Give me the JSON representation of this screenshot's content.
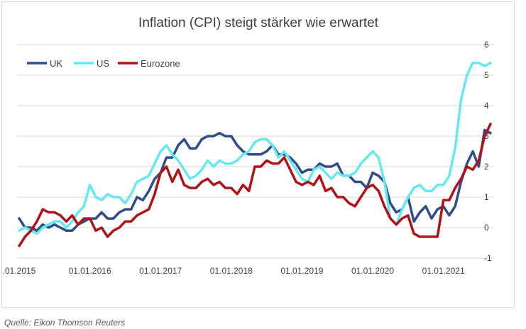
{
  "source": "Quelle: Eikon Thomson Reuters",
  "chart_data": {
    "type": "line",
    "title": "Inflation (CPI) steigt stärker wie erwartet",
    "xlabel": "",
    "ylabel": "",
    "ylim": [
      -1,
      6
    ],
    "yticks": [
      -1,
      0,
      1,
      2,
      3,
      4,
      5,
      6
    ],
    "x_tick_labels": [
      ".01.2015",
      "01.01.2016",
      "01.01.2017",
      "01.01.2018",
      "01.01.2019",
      "01.01.2020",
      "01.01.2021"
    ],
    "x_start": "2015-01",
    "x_end": "2021-07",
    "grid": true,
    "legend_position": "top-left",
    "colors": {
      "UK": "#2e4d8a",
      "US": "#66e8f2",
      "Eurozone": "#b01218",
      "grid": "#d9d9d9",
      "axis_text": "#404040",
      "title": "#404040"
    },
    "series": [
      {
        "name": "UK",
        "color": "#2e4d8a",
        "values": [
          0.3,
          0.0,
          0.0,
          -0.1,
          0.1,
          0.0,
          0.1,
          0.0,
          -0.1,
          -0.1,
          0.1,
          0.2,
          0.3,
          0.3,
          0.5,
          0.3,
          0.3,
          0.5,
          0.6,
          0.6,
          1.0,
          0.9,
          1.2,
          1.6,
          1.8,
          2.3,
          2.3,
          2.7,
          2.9,
          2.6,
          2.6,
          2.9,
          3.0,
          3.0,
          3.1,
          3.0,
          3.0,
          2.7,
          2.5,
          2.4,
          2.4,
          2.4,
          2.5,
          2.7,
          2.4,
          2.4,
          2.3,
          2.1,
          1.8,
          1.9,
          1.9,
          2.1,
          2.0,
          2.0,
          2.1,
          1.7,
          1.7,
          1.5,
          1.5,
          1.3,
          1.8,
          1.7,
          1.5,
          0.8,
          0.5,
          0.6,
          1.0,
          0.2,
          0.5,
          0.7,
          0.3,
          0.6,
          0.7,
          0.4,
          0.7,
          1.5,
          2.1,
          2.5,
          2.0,
          3.2,
          3.1
        ]
      },
      {
        "name": "US",
        "color": "#66e8f2",
        "values": [
          -0.1,
          0.0,
          -0.1,
          -0.2,
          0.0,
          0.1,
          0.2,
          0.2,
          0.0,
          0.2,
          0.5,
          0.7,
          1.4,
          1.0,
          0.9,
          1.1,
          1.0,
          1.0,
          0.8,
          1.1,
          1.5,
          1.6,
          1.7,
          2.1,
          2.5,
          2.7,
          2.4,
          2.2,
          1.9,
          1.6,
          1.7,
          1.9,
          2.2,
          2.0,
          2.2,
          2.1,
          2.1,
          2.2,
          2.4,
          2.5,
          2.8,
          2.9,
          2.9,
          2.7,
          2.3,
          2.5,
          2.2,
          1.9,
          1.6,
          1.5,
          1.9,
          2.0,
          1.8,
          1.6,
          1.8,
          1.7,
          1.7,
          1.8,
          2.1,
          2.3,
          2.5,
          2.3,
          1.5,
          0.3,
          0.1,
          0.6,
          1.0,
          1.3,
          1.4,
          1.2,
          1.2,
          1.4,
          1.4,
          1.7,
          2.6,
          4.2,
          5.0,
          5.4,
          5.4,
          5.3,
          5.4
        ]
      },
      {
        "name": "Eurozone",
        "color": "#b01218",
        "values": [
          -0.6,
          -0.3,
          -0.1,
          0.2,
          0.6,
          0.5,
          0.5,
          0.4,
          0.2,
          0.4,
          0.1,
          0.3,
          0.3,
          -0.1,
          0.0,
          -0.3,
          -0.1,
          0.0,
          0.2,
          0.2,
          0.4,
          0.5,
          0.6,
          1.1,
          1.8,
          2.0,
          1.5,
          1.9,
          1.4,
          1.3,
          1.3,
          1.5,
          1.6,
          1.4,
          1.5,
          1.3,
          1.3,
          1.1,
          1.4,
          1.2,
          2.0,
          2.0,
          2.2,
          2.1,
          2.1,
          2.3,
          1.9,
          1.5,
          1.4,
          1.5,
          1.4,
          1.7,
          1.2,
          1.3,
          1.0,
          1.0,
          0.8,
          0.7,
          1.0,
          1.3,
          1.4,
          1.2,
          0.7,
          0.3,
          0.1,
          0.3,
          0.4,
          -0.2,
          -0.3,
          -0.3,
          -0.3,
          -0.3,
          0.9,
          0.9,
          1.3,
          1.6,
          2.0,
          1.9,
          2.2,
          3.0,
          3.4
        ]
      }
    ]
  }
}
